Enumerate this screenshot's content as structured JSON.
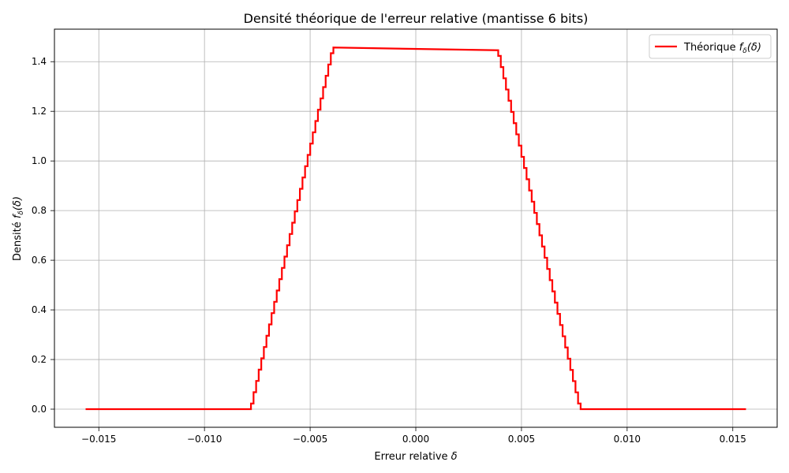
{
  "chart_data": {
    "type": "line",
    "title": "Densité théorique de l'erreur relative (mantisse 6 bits)",
    "xlabel_text": "Erreur relative ",
    "xlabel_symbol": "δ",
    "ylabel_text": "Densité ",
    "ylabel_symbol_f": "f",
    "ylabel_symbol_sub": "δ",
    "ylabel_symbol_arg": "(δ)",
    "xlim": [
      -0.0171,
      0.0171
    ],
    "ylim": [
      -0.073,
      1.531
    ],
    "x_ticks": [
      -0.015,
      -0.01,
      -0.005,
      0.0,
      0.005,
      0.01,
      0.015
    ],
    "x_tick_labels": [
      "−0.015",
      "−0.010",
      "−0.005",
      "0.000",
      "0.005",
      "0.010",
      "0.015"
    ],
    "y_ticks": [
      0.0,
      0.2,
      0.4,
      0.6,
      0.8,
      1.0,
      1.2,
      1.4
    ],
    "y_tick_labels": [
      "0.0",
      "0.2",
      "0.4",
      "0.6",
      "0.8",
      "1.0",
      "1.2",
      "1.4"
    ],
    "grid": true,
    "legend_position": "top-right",
    "series": [
      {
        "name_text": "Théorique ",
        "name_f": "f",
        "name_sub": "δ",
        "name_arg": "(δ)",
        "color": "#ff0000",
        "x": [
          -0.015625,
          -0.0078,
          -0.0039,
          0.0039,
          0.0078,
          0.015625
        ],
        "y": [
          0.0,
          0.0,
          1.457,
          1.446,
          0.0,
          0.0
        ],
        "steps": 32
      }
    ]
  }
}
